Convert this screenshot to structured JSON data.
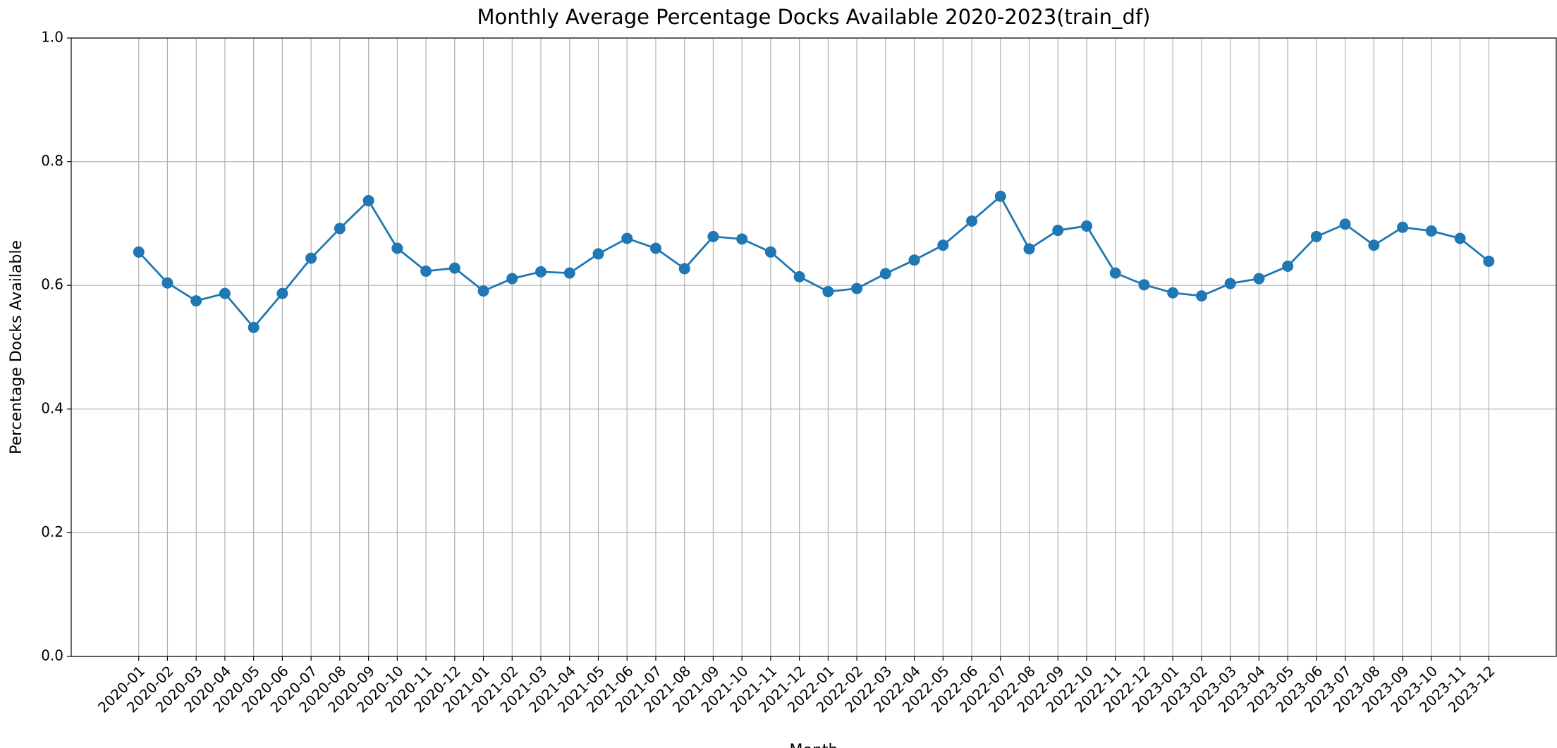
{
  "chart_data": {
    "type": "line",
    "title": "Monthly Average Percentage Docks Available 2020-2023(train_df)",
    "x_label": "Month",
    "y_label": "Percentage Docks Available",
    "categories": [
      "2020-01",
      "2020-02",
      "2020-03",
      "2020-04",
      "2020-05",
      "2020-06",
      "2020-07",
      "2020-08",
      "2020-09",
      "2020-10",
      "2020-11",
      "2020-12",
      "2021-01",
      "2021-02",
      "2021-03",
      "2021-04",
      "2021-05",
      "2021-06",
      "2021-07",
      "2021-08",
      "2021-09",
      "2021-10",
      "2021-11",
      "2021-12",
      "2022-01",
      "2022-02",
      "2022-03",
      "2022-04",
      "2022-05",
      "2022-06",
      "2022-07",
      "2022-08",
      "2022-09",
      "2022-10",
      "2022-11",
      "2022-12",
      "2023-01",
      "2023-02",
      "2023-03",
      "2023-04",
      "2023-05",
      "2023-06",
      "2023-07",
      "2023-08",
      "2023-09",
      "2023-10",
      "2023-11",
      "2023-12"
    ],
    "values": [
      0.654,
      0.604,
      0.575,
      0.587,
      0.532,
      0.587,
      0.644,
      0.692,
      0.737,
      0.66,
      0.623,
      0.628,
      0.591,
      0.611,
      0.622,
      0.62,
      0.651,
      0.676,
      0.66,
      0.627,
      0.679,
      0.675,
      0.654,
      0.614,
      0.59,
      0.595,
      0.619,
      0.641,
      0.665,
      0.704,
      0.744,
      0.659,
      0.689,
      0.696,
      0.62,
      0.601,
      0.588,
      0.583,
      0.603,
      0.611,
      0.631,
      0.679,
      0.699,
      0.665,
      0.694,
      0.688,
      0.676,
      0.639
    ],
    "color": "#1f77b4",
    "marker": "o",
    "ylim": [
      0,
      1
    ],
    "yticks": [
      {
        "value": 0,
        "label": "0.0"
      },
      0.2,
      0.4,
      0.6,
      0.8,
      {
        "value": 1,
        "label": "1.0"
      }
    ],
    "grid": true
  }
}
